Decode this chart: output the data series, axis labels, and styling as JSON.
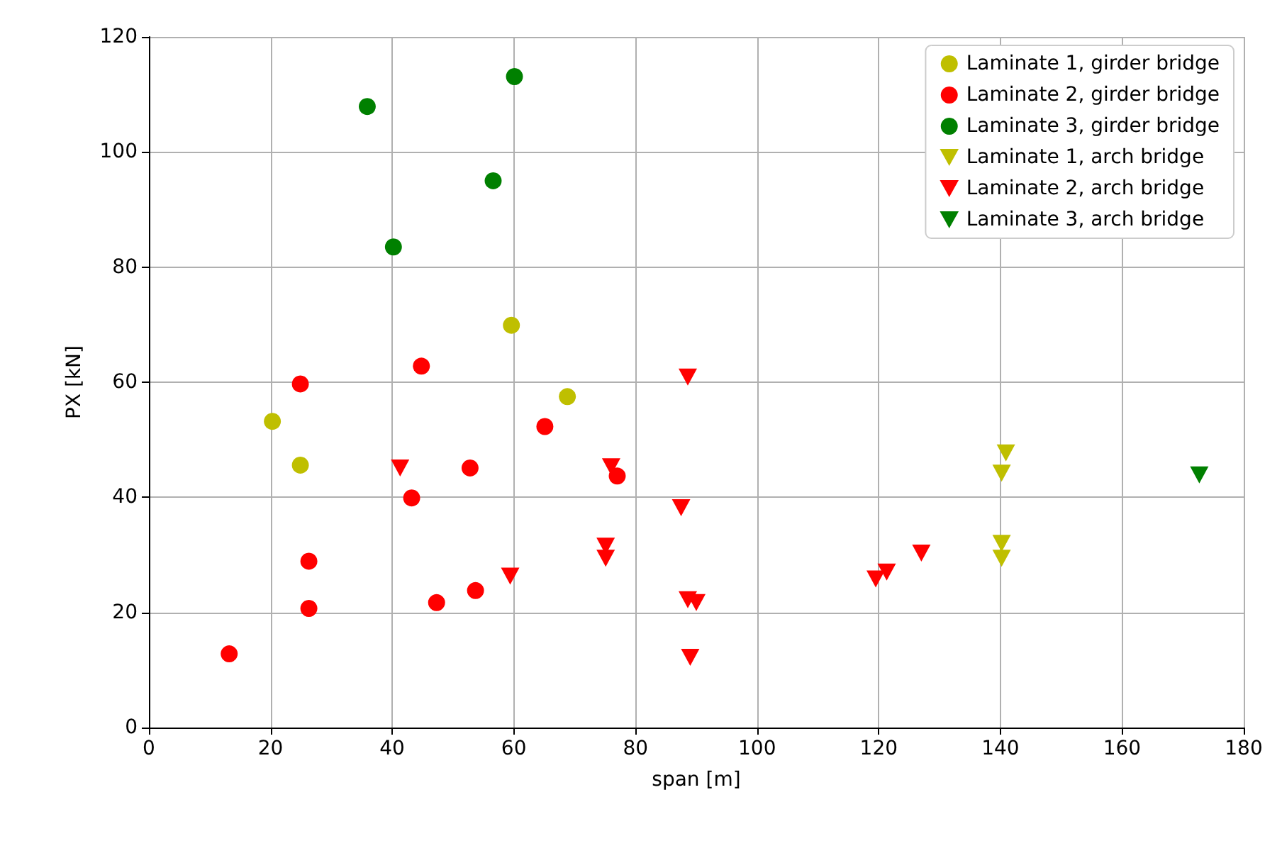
{
  "chart_data": {
    "type": "scatter",
    "xlabel": "span [m]",
    "ylabel": "PX [kN]",
    "xlim": [
      0,
      180
    ],
    "xticks": [
      0,
      20,
      40,
      60,
      80,
      100,
      120,
      140,
      160,
      180
    ],
    "ylim": [
      0,
      120
    ],
    "yticks": [
      0,
      20,
      40,
      60,
      80,
      100,
      120
    ],
    "grid": true,
    "legend": "top right",
    "series": [
      {
        "name": "Laminate 1, girder bridge",
        "color": "#bfbf00",
        "marker": "circle",
        "x": [
          20.3,
          24.9,
          59.6,
          68.8
        ],
        "values": [
          53.2,
          45.6,
          69.9,
          57.5
        ]
      },
      {
        "name": "Laminate 2, girder bridge",
        "color": "#ff0000",
        "marker": "circle",
        "x": [
          13.2,
          24.9,
          44.8,
          26.3,
          26.3,
          43.2,
          47.3,
          53.7,
          52.8,
          65.1,
          77
        ],
        "values": [
          12.8,
          59.7,
          62.8,
          28.9,
          20.7,
          39.9,
          21.7,
          23.8,
          45.1,
          52.3,
          43.7
        ]
      },
      {
        "name": "Laminate 3, girder bridge",
        "color": "#008000",
        "marker": "circle",
        "x": [
          35.9,
          60.1,
          56.6,
          40.2
        ],
        "values": [
          107.9,
          113.1,
          95.0,
          83.5
        ]
      },
      {
        "name": "Laminate 1, arch bridge",
        "color": "#bfbf00",
        "marker": "triangle",
        "x": [
          140.9,
          140.2,
          140.2,
          140.2
        ],
        "values": [
          47.7,
          44.2,
          32,
          29.4
        ]
      },
      {
        "name": "Laminate 2, arch bridge",
        "color": "#ff0000",
        "marker": "triangle",
        "x": [
          41.3,
          59.4,
          88.6,
          76,
          87.5,
          75.1,
          75.1,
          88.6,
          90,
          89,
          119.5,
          121.3,
          127
        ],
        "values": [
          45.1,
          26.3,
          60.9,
          45.3,
          38.2,
          31.5,
          29.4,
          22.2,
          21.7,
          12.2,
          25.8,
          27,
          30.3
        ]
      },
      {
        "name": "Laminate 3, arch bridge",
        "color": "#008000",
        "marker": "triangle",
        "x": [
          172.7
        ],
        "values": [
          43.9
        ]
      }
    ]
  }
}
